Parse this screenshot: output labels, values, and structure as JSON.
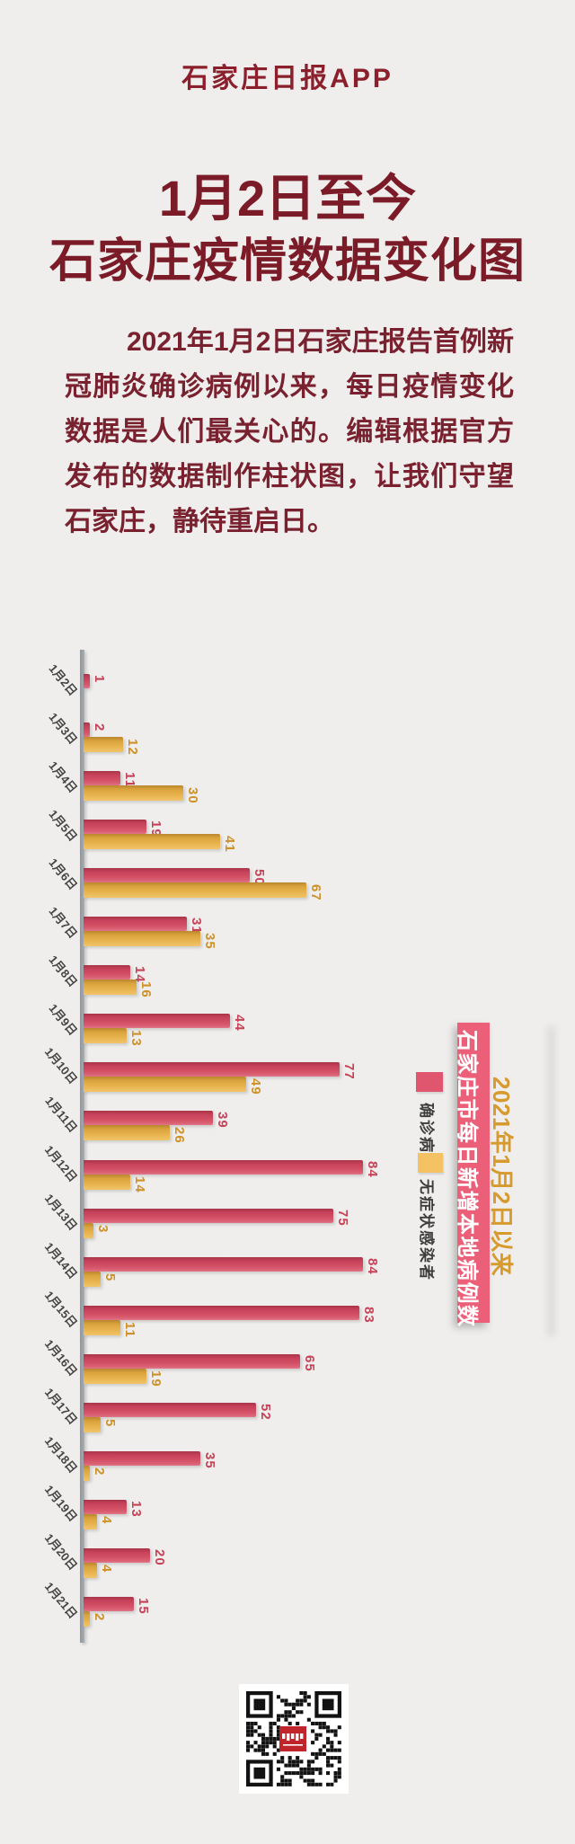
{
  "page": {
    "background": "#efeeec"
  },
  "header": {
    "logo": "石家庄日报APP",
    "title_line1": "1月2日至今",
    "title_line2": "石家庄疫情数据变化图",
    "intro": "2021年1月2日石家庄报告首例新冠肺炎确诊病例以来，每日疫情变化数据是人们最关心的。编辑根据官方发布的数据制作柱状图，让我们守望石家庄，静待重启日。"
  },
  "chart_data": {
    "type": "bar",
    "orientation": "horizontal",
    "title": "石家庄市每日新增本地病例数",
    "subtitle": "2021年1月2日以来",
    "categories": [
      "1月2日",
      "1月3日",
      "1月4日",
      "1月5日",
      "1月6日",
      "1月7日",
      "1月8日",
      "1月9日",
      "1月10日",
      "1月11日",
      "1月12日",
      "1月13日",
      "1月14日",
      "1月15日",
      "1月16日",
      "1月17日",
      "1月18日",
      "1月19日",
      "1月20日",
      "1月21日"
    ],
    "series": [
      {
        "name": "确诊病例",
        "color": "#d24f64",
        "values": [
          1,
          2,
          11,
          19,
          50,
          31,
          14,
          44,
          77,
          39,
          84,
          75,
          84,
          83,
          65,
          52,
          35,
          13,
          20,
          15
        ]
      },
      {
        "name": "无症状感染者",
        "color": "#e7b24c",
        "values": [
          null,
          12,
          30,
          41,
          67,
          35,
          16,
          13,
          49,
          26,
          14,
          3,
          5,
          11,
          19,
          5,
          2,
          4,
          4,
          2
        ]
      }
    ],
    "value_labels": true,
    "legend_position": "right",
    "axis_color": "#9ba1a8",
    "value_label_colors": {
      "确诊病例": "#c64257",
      "无症状感染者": "#cf9129"
    }
  },
  "colors": {
    "title": "#7a1b27",
    "body_text": "#7a2130",
    "banner_background": "#ec5f78",
    "banner_text": "#ffffff",
    "subtitle_gold": "#d79a2f",
    "bar_red": "#d24f64",
    "bar_yellow": "#e7b24c"
  },
  "footer": {
    "qr_logo": "石家庄日报"
  }
}
